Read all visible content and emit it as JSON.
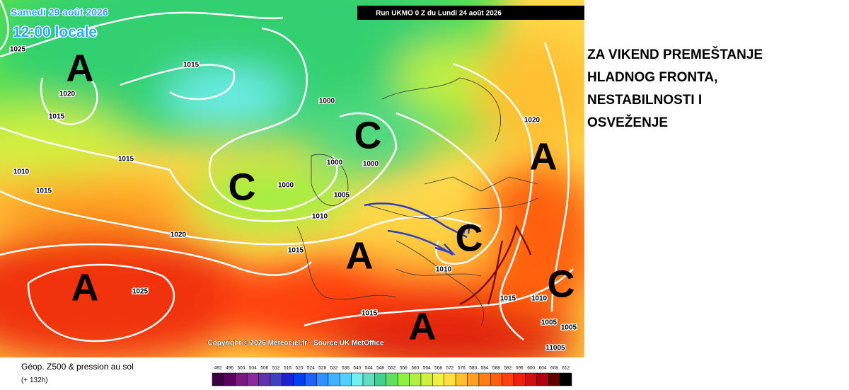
{
  "header": {
    "date": "Samedi 29 août 2026",
    "time": "12:00 locale",
    "run": "Run UKMO 0 Z du Lundi 24 août 2026"
  },
  "map": {
    "isobar_labels": [
      "1025",
      "1015",
      "1020",
      "1015",
      "1000",
      "1015",
      "1010",
      "1015",
      "1000",
      "1000",
      "1000",
      "1005",
      "1010",
      "1020",
      "1015",
      "1010",
      "1025",
      "1015",
      "1015",
      "1010",
      "1005",
      "1005",
      "11005",
      "1020"
    ],
    "centers": [
      "A",
      "A",
      "A",
      "A",
      "A",
      "C",
      "C",
      "C",
      "C"
    ],
    "copyright": "Copyright © 2026 Meteociel.fr - Source UK MetOffice"
  },
  "legend": {
    "title": "Géop. Z500 & pression au sol",
    "lead": "(+ 132h)",
    "scale": [
      492,
      496,
      500,
      504,
      508,
      512,
      516,
      520,
      524,
      528,
      532,
      536,
      540,
      544,
      548,
      552,
      556,
      560,
      564,
      568,
      572,
      576,
      580,
      584,
      588,
      592,
      596,
      600,
      604,
      608,
      612
    ],
    "colors": [
      "#3d0040",
      "#5a0060",
      "#7a1a80",
      "#8a2aa0",
      "#6030b0",
      "#4040c0",
      "#2020d0",
      "#0040f0",
      "#2060ff",
      "#3090ff",
      "#40b0ff",
      "#50d0ff",
      "#70f0f0",
      "#60e0c0",
      "#40d090",
      "#60e060",
      "#90f040",
      "#b0f040",
      "#d0f040",
      "#f0f040",
      "#ffe040",
      "#ffc030",
      "#ffa020",
      "#ff8010",
      "#ff6010",
      "#ff4010",
      "#f02010",
      "#d01010",
      "#b00010",
      "#600000",
      "#000000"
    ]
  },
  "caption": [
    "ZA VIKEND PREMEŠTANJE",
    "HLADNOG FRONTA,",
    "NESTABILNOSTI I",
    "OSVEŽENJE"
  ]
}
